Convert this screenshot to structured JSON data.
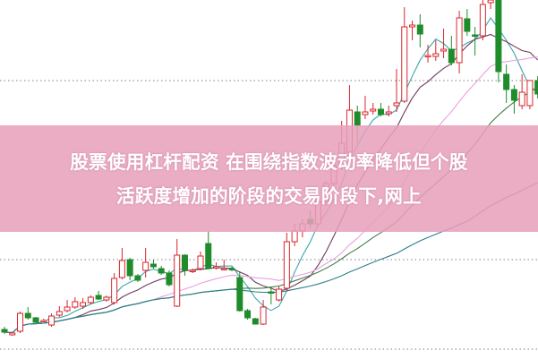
{
  "chart_data": {
    "type": "candlestick",
    "title": "",
    "xlabel": "",
    "ylabel": "",
    "ylim": [
      0,
      40
    ],
    "grid": "horizontal dotted",
    "grid_levels": [
      1,
      11,
      31
    ],
    "colors": {
      "up": "#d9262d",
      "down": "#1e8c2a",
      "grid": "#999999"
    },
    "candles": [
      [
        3.2,
        3.5,
        2.7,
        2.9
      ],
      [
        2.6,
        2.9,
        2.5,
        2.8
      ],
      [
        3.0,
        5.2,
        2.8,
        5.0
      ],
      [
        5.0,
        5.7,
        4.3,
        4.5
      ],
      [
        4.5,
        4.6,
        3.9,
        4.0
      ],
      [
        4.2,
        4.4,
        4.0,
        4.2
      ],
      [
        3.7,
        5.0,
        3.5,
        4.7
      ],
      [
        4.8,
        5.8,
        4.6,
        5.2
      ],
      [
        5.3,
        6.5,
        5.1,
        5.7
      ],
      [
        5.7,
        6.8,
        5.5,
        6.3
      ],
      [
        5.8,
        6.7,
        5.5,
        6.2
      ],
      [
        6.2,
        7.0,
        6.0,
        6.8
      ],
      [
        7.0,
        7.5,
        6.5,
        6.6
      ],
      [
        6.5,
        7.0,
        6.3,
        6.8
      ],
      [
        6.2,
        9.5,
        6.0,
        8.9
      ],
      [
        9.0,
        12.3,
        8.8,
        10.9
      ],
      [
        11.0,
        11.2,
        8.7,
        9.2
      ],
      [
        9.2,
        9.4,
        8.5,
        8.7
      ],
      [
        9.8,
        12.3,
        9.0,
        10.7
      ],
      [
        10.5,
        11.0,
        10.0,
        10.2
      ],
      [
        10.0,
        10.3,
        9.3,
        9.5
      ],
      [
        9.5,
        9.8,
        8.0,
        8.2
      ],
      [
        5.8,
        13.3,
        5.7,
        11.5
      ],
      [
        11.5,
        11.6,
        9.2,
        9.8
      ],
      [
        9.8,
        10.0,
        9.5,
        9.8
      ],
      [
        10.0,
        11.9,
        9.8,
        11.4
      ],
      [
        12.8,
        14.2,
        9.9,
        10.0
      ],
      [
        10.1,
        10.7,
        9.9,
        10.2
      ],
      [
        10.0,
        11.0,
        9.8,
        10.0
      ],
      [
        10.0,
        10.2,
        9.7,
        9.9
      ],
      [
        9.0,
        9.7,
        5.2,
        5.3
      ],
      [
        5.3,
        5.5,
        4.3,
        4.5
      ],
      [
        4.4,
        4.5,
        3.8,
        3.8
      ],
      [
        3.8,
        6.5,
        3.7,
        5.7
      ],
      [
        7.4,
        8.0,
        6.0,
        7.3
      ],
      [
        6.5,
        8.0,
        6.3,
        7.7
      ],
      [
        7.8,
        14.0,
        7.5,
        13.0
      ],
      [
        13.0,
        15.0,
        12.5,
        14.2
      ],
      [
        14.2,
        15.5,
        13.5,
        15.0
      ],
      [
        15.5,
        16.5,
        14.5,
        15.0
      ],
      [
        15.0,
        17.8,
        14.8,
        17.5
      ],
      [
        17.5,
        19.8,
        17.0,
        19.5
      ],
      [
        19.5,
        22.0,
        19.0,
        21.5
      ],
      [
        21.5,
        26.5,
        21.0,
        24.0
      ],
      [
        23.0,
        30.5,
        22.5,
        27.7
      ],
      [
        27.5,
        28.2,
        24.0,
        26.0
      ],
      [
        27.2,
        29.3,
        26.7,
        27.5
      ],
      [
        27.6,
        28.5,
        27.2,
        27.8
      ],
      [
        27.8,
        28.5,
        27.0,
        27.2
      ],
      [
        27.3,
        28.2,
        27.0,
        27.5
      ],
      [
        28.2,
        32.3,
        27.5,
        28.5
      ],
      [
        28.7,
        39.2,
        28.5,
        37.0
      ],
      [
        37.0,
        37.7,
        35.5,
        37.2
      ],
      [
        37.2,
        38.4,
        34.7,
        36.2
      ],
      [
        33.8,
        35.0,
        33.0,
        33.8
      ],
      [
        33.7,
        35.5,
        33.2,
        34.0
      ],
      [
        34.3,
        36.8,
        33.5,
        34.5
      ],
      [
        34.5,
        36.0,
        32.7,
        33.0
      ],
      [
        33.0,
        38.8,
        31.8,
        38.0
      ],
      [
        37.9,
        39.0,
        36.0,
        36.5
      ],
      [
        36.1,
        37.0,
        33.8,
        36.0
      ],
      [
        36.0,
        40.0,
        35.5,
        39.5
      ],
      [
        39.7,
        40.5,
        39.0,
        40.0
      ],
      [
        40.0,
        40.5,
        30.8,
        32.0
      ],
      [
        31.7,
        32.8,
        28.5,
        30.0
      ],
      [
        30.0,
        30.5,
        27.3,
        28.8
      ],
      [
        28.2,
        31.7,
        27.8,
        29.7
      ],
      [
        28.2,
        31.0,
        27.8,
        31.0
      ],
      [
        31.0,
        31.5,
        29.0,
        29.5
      ]
    ],
    "candle_fields": [
      "open",
      "high",
      "low",
      "close"
    ],
    "moving_averages": [
      {
        "period": 5,
        "color": "#3aa6ad"
      },
      {
        "period": 10,
        "color": "#6e3b5f"
      },
      {
        "period": 20,
        "color": "#ea9fe3"
      },
      {
        "period": 30,
        "color": "#3f7d47"
      },
      {
        "period": 60,
        "color": "#2b7f8c"
      }
    ]
  },
  "banner": {
    "line1": "股票使用杠杆配资 在围绕指数波动率降低但个股",
    "line2": "活跃度增加的阶段的交易阶段下,网上"
  }
}
